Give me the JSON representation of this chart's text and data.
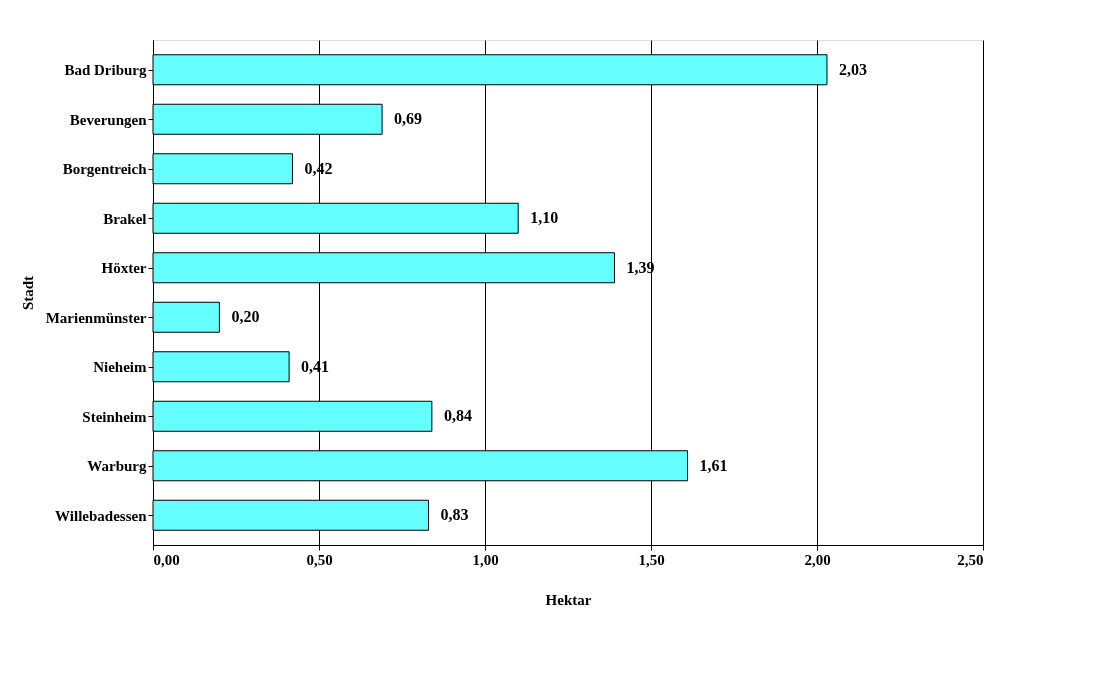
{
  "chart_data": {
    "type": "bar",
    "orientation": "horizontal",
    "xlabel": "Hektar",
    "ylabel": "Stadt",
    "categories": [
      "Bad Driburg",
      "Beverungen",
      "Borgentreich",
      "Brakel",
      "Höxter",
      "Marienmünster",
      "Nieheim",
      "Steinheim",
      "Warburg",
      "Willebadessen"
    ],
    "values": [
      2.03,
      0.69,
      0.42,
      1.1,
      1.39,
      0.2,
      0.41,
      0.84,
      1.61,
      0.83
    ],
    "value_labels": [
      "2,03",
      "0,69",
      "0,42",
      "1,10",
      "1,39",
      "0,20",
      "0,41",
      "0,84",
      "1,61",
      "0,83"
    ],
    "color": "#66ffff",
    "xlim": [
      0,
      2.5
    ],
    "xticks": [
      {
        "value": 0,
        "label": "0,00"
      },
      {
        "value": 0.5,
        "label": "0,50"
      },
      {
        "value": 1,
        "label": "1,00"
      },
      {
        "value": 1.5,
        "label": "1,50"
      },
      {
        "value": 2,
        "label": "2,00"
      },
      {
        "value": 2.5,
        "label": "2,50"
      }
    ],
    "grid": "x"
  }
}
